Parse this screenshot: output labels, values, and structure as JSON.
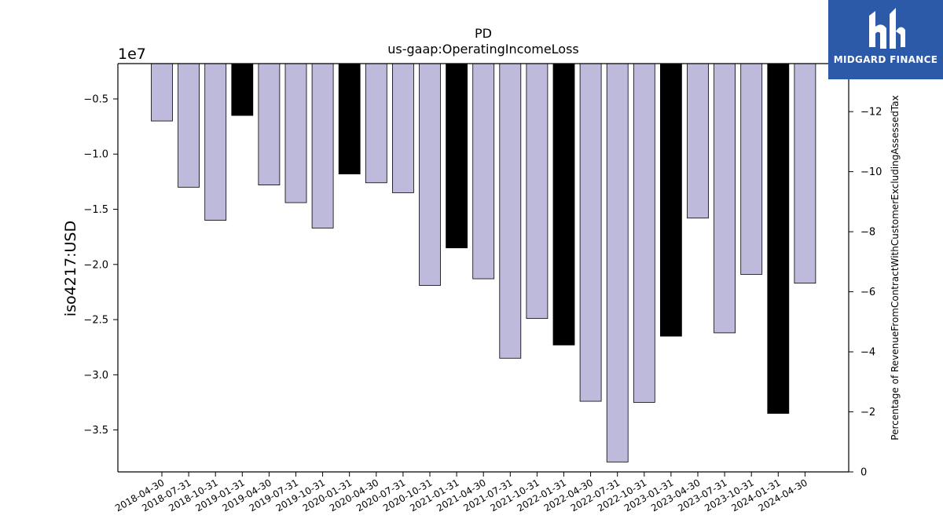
{
  "chart_data": {
    "type": "bar",
    "title": "PD",
    "subtitle": "us-gaap:OperatingIncomeLoss",
    "ylabel": "iso4217:USD",
    "y_multiplier_label": "1e7",
    "y2label": "Percentage of RevenueFromContractWithCustomerExcludingAssessedTax",
    "categories": [
      "2018-04-30",
      "2018-07-31",
      "2018-10-31",
      "2019-01-31",
      "2019-04-30",
      "2019-07-31",
      "2019-10-31",
      "2020-01-31",
      "2020-04-30",
      "2020-07-31",
      "2020-10-31",
      "2021-01-31",
      "2021-04-30",
      "2021-07-31",
      "2021-10-31",
      "2022-01-31",
      "2022-04-30",
      "2022-07-31",
      "2022-10-31",
      "2023-01-31",
      "2023-04-30",
      "2023-07-31",
      "2023-10-31",
      "2024-01-31",
      "2024-04-30"
    ],
    "values": [
      -7000000,
      -13000000,
      -16000000,
      -6500000,
      -12800000,
      -14400000,
      -16700000,
      -11800000,
      -12600000,
      -13500000,
      -21900000,
      -18500000,
      -21300000,
      -28500000,
      -24900000,
      -27300000,
      -32400000,
      -37900000,
      -32500000,
      -26500000,
      -15800000,
      -26200000,
      -20900000,
      -33500000,
      -21700000
    ],
    "highlight": [
      false,
      false,
      false,
      true,
      false,
      false,
      false,
      true,
      false,
      false,
      false,
      true,
      false,
      false,
      false,
      true,
      false,
      false,
      false,
      true,
      false,
      false,
      false,
      true,
      false
    ],
    "ylim": [
      -38800000,
      -1800000
    ],
    "yticks": [
      -5000000,
      -10000000,
      -15000000,
      -20000000,
      -25000000,
      -30000000,
      -35000000
    ],
    "ytick_labels": [
      "−0.5",
      "−1.0",
      "−1.5",
      "−2.0",
      "−2.5",
      "−3.0",
      "−3.5"
    ],
    "y2lim": [
      0,
      -13.6
    ],
    "y2ticks": [
      0,
      -2,
      -4,
      -6,
      -8,
      -10,
      -12
    ],
    "y2tick_labels": [
      "0",
      "−2",
      "−4",
      "−6",
      "−8",
      "−10",
      "−12"
    ],
    "colors": {
      "bar": "#bebadb",
      "highlight": "#000000",
      "edge": "#000000"
    },
    "grid": false
  },
  "logo": {
    "text": "MIDGARD FINANCE"
  }
}
